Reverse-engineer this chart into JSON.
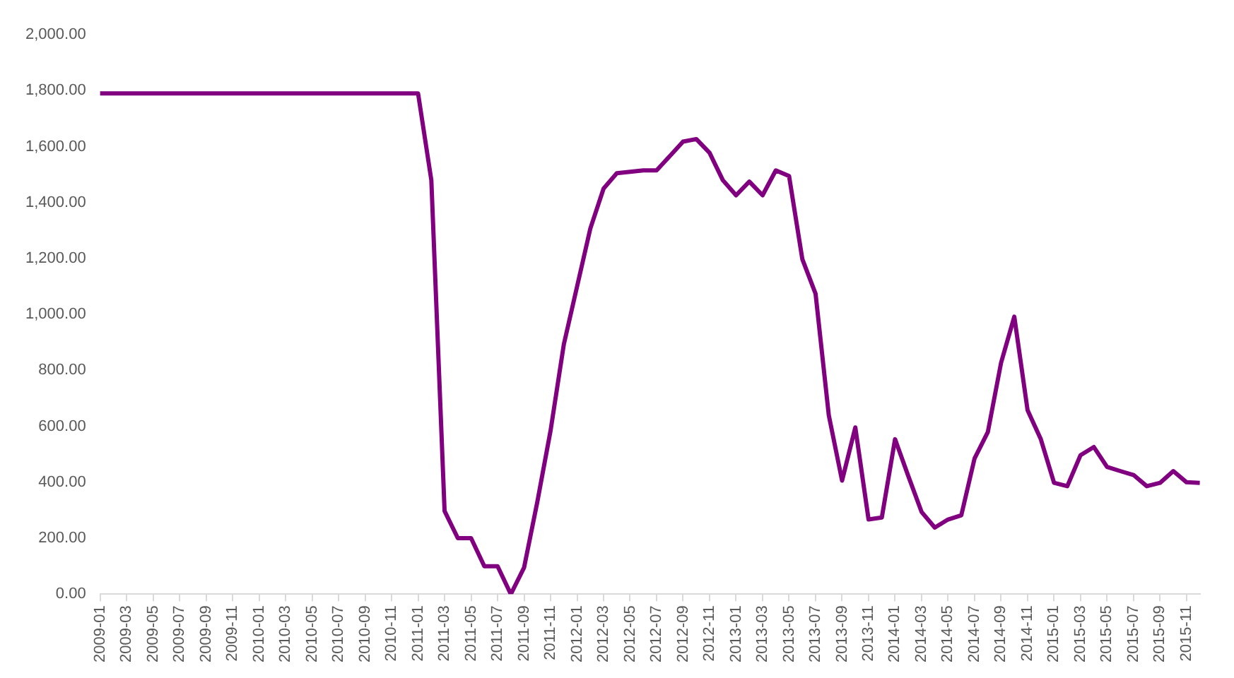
{
  "chart_data": {
    "type": "line",
    "categories": [
      "2009-01",
      null,
      "2009-03",
      null,
      "2009-05",
      null,
      "2009-07",
      null,
      "2009-09",
      null,
      "2009-11",
      null,
      "2010-01",
      null,
      "2010-03",
      null,
      "2010-05",
      null,
      "2010-07",
      null,
      "2010-09",
      null,
      "2010-11",
      null,
      "2011-01",
      null,
      "2011-03",
      null,
      "2011-05",
      null,
      "2011-07",
      null,
      "2011-09",
      null,
      "2011-11",
      null,
      "2012-01",
      null,
      "2012-03",
      null,
      "2012-05",
      null,
      "2012-07",
      null,
      "2012-09",
      null,
      "2012-11",
      null,
      "2013-01",
      null,
      "2013-03",
      null,
      "2013-05",
      null,
      "2013-07",
      null,
      "2013-09",
      null,
      "2013-11",
      null,
      "2014-01",
      null,
      "2014-03",
      null,
      "2014-05",
      null,
      "2014-07",
      null,
      "2014-09",
      null,
      "2014-11",
      null,
      "2015-01",
      null,
      "2015-03",
      null,
      "2015-05",
      null,
      "2015-07",
      null,
      "2015-09",
      null,
      "2015-11",
      null
    ],
    "series": [
      {
        "color": "#800080",
        "values": [
          1790,
          1790,
          1790,
          1790,
          1790,
          1790,
          1790,
          1790,
          1790,
          1790,
          1790,
          1790,
          1790,
          1790,
          1790,
          1790,
          1790,
          1790,
          1790,
          1790,
          1790,
          1790,
          1790,
          1790,
          1790,
          1480,
          297,
          200,
          200,
          100,
          100,
          0,
          95,
          330,
          585,
          893,
          1100,
          1307,
          1450,
          1505,
          1510,
          1515,
          1515,
          1566,
          1618,
          1627,
          1578,
          1480,
          1426,
          1475,
          1426,
          1515,
          1495,
          1198,
          1074,
          639,
          406,
          596,
          267,
          274,
          554,
          422,
          294,
          238,
          267,
          282,
          485,
          579,
          827,
          992,
          658,
          554,
          398,
          386,
          497,
          526,
          455,
          440,
          426,
          386,
          398,
          440,
          400,
          398
        ]
      }
    ],
    "ylim": [
      0,
      2000
    ],
    "yticks": [
      {
        "value": 0,
        "label": "0.00"
      },
      {
        "value": 200,
        "label": "200.00"
      },
      {
        "value": 400,
        "label": "400.00"
      },
      {
        "value": 600,
        "label": "600.00"
      },
      {
        "value": 800,
        "label": "800.00"
      },
      {
        "value": 1000,
        "label": "1,000.00"
      },
      {
        "value": 1200,
        "label": "1,200.00"
      },
      {
        "value": 1400,
        "label": "1,400.00"
      },
      {
        "value": 1600,
        "label": "1,600.00"
      },
      {
        "value": 1800,
        "label": "1,800.00"
      },
      {
        "value": 2000,
        "label": "2,000.00"
      }
    ],
    "grid": false,
    "legend": false,
    "marker": "none",
    "line_style": "solid"
  }
}
